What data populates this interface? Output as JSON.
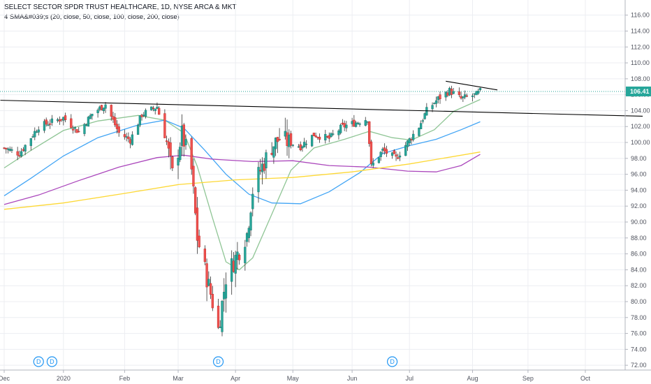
{
  "header": {
    "title": "SELECT SECTOR SPDR TRUST HEALTHCARE, 1D, NYSE ARCA & MKT",
    "indicator": "4 SMA&#039;s (20, close, 50, close, 100, close, 200, close)"
  },
  "chart_data": {
    "type": "candlestick",
    "y_ticks": [
      "116.00",
      "114.00",
      "112.00",
      "110.00",
      "108.00",
      "106.00",
      "104.00",
      "102.00",
      "100.00",
      "98.00",
      "96.00",
      "94.00",
      "92.00",
      "90.00",
      "88.00",
      "86.00",
      "84.00",
      "82.00",
      "80.00",
      "78.00",
      "76.00",
      "74.00",
      "72.00"
    ],
    "ylim": [
      71.4,
      117.2
    ],
    "x_ticks": [
      {
        "label": "Dec",
        "date": "2019-12-02"
      },
      {
        "label": "2020",
        "date": "2020-01-02"
      },
      {
        "label": "Feb",
        "date": "2020-02-03"
      },
      {
        "label": "Mar",
        "date": "2020-03-02"
      },
      {
        "label": "Apr",
        "date": "2020-04-01"
      },
      {
        "label": "May",
        "date": "2020-05-01"
      },
      {
        "label": "Jun",
        "date": "2020-06-01"
      },
      {
        "label": "Jul",
        "date": "2020-07-01"
      },
      {
        "label": "Aug",
        "date": "2020-08-03"
      },
      {
        "label": "Sep",
        "date": "2020-09-01"
      },
      {
        "label": "Oct",
        "date": "2020-10-01"
      }
    ],
    "last_price": {
      "label": "106.41",
      "value": 106.41,
      "color": "#26a69a"
    },
    "dividend_markers": [
      {
        "label": "D",
        "date": "2019-12-20"
      },
      {
        "label": "D",
        "date": "2019-12-27"
      },
      {
        "label": "D",
        "date": "2020-03-23"
      },
      {
        "label": "D",
        "date": "2020-06-22"
      }
    ],
    "anchors": [
      [
        "2019-12-02",
        99.3
      ],
      [
        "2019-12-10",
        98.6
      ],
      [
        "2019-12-20",
        102.0
      ],
      [
        "2020-01-02",
        103.1
      ],
      [
        "2020-01-10",
        101.3
      ],
      [
        "2020-01-17",
        103.6
      ],
      [
        "2020-01-24",
        104.8
      ],
      [
        "2020-01-31",
        101.2
      ],
      [
        "2020-02-06",
        100.3
      ],
      [
        "2020-02-12",
        103.5
      ],
      [
        "2020-02-20",
        104.5
      ],
      [
        "2020-02-25",
        100.0
      ],
      [
        "2020-02-28",
        96.0
      ],
      [
        "2020-03-04",
        101.0
      ],
      [
        "2020-03-09",
        96.5
      ],
      [
        "2020-03-12",
        88.0
      ],
      [
        "2020-03-16",
        84.0
      ],
      [
        "2020-03-19",
        81.0
      ],
      [
        "2020-03-23",
        76.5
      ],
      [
        "2020-03-27",
        83.0
      ],
      [
        "2020-04-02",
        86.0
      ],
      [
        "2020-04-07",
        88.5
      ],
      [
        "2020-04-10",
        94.0
      ],
      [
        "2020-04-14",
        96.5
      ],
      [
        "2020-04-20",
        99.5
      ],
      [
        "2020-04-24",
        100.5
      ],
      [
        "2020-04-29",
        100.0
      ],
      [
        "2020-05-05",
        99.5
      ],
      [
        "2020-05-12",
        101.0
      ],
      [
        "2020-05-20",
        100.5
      ],
      [
        "2020-05-27",
        102.0
      ],
      [
        "2020-06-03",
        102.5
      ],
      [
        "2020-06-09",
        103.0
      ],
      [
        "2020-06-11",
        97.0
      ],
      [
        "2020-06-17",
        99.0
      ],
      [
        "2020-06-24",
        98.0
      ],
      [
        "2020-06-30",
        100.0
      ],
      [
        "2020-07-06",
        102.0
      ],
      [
        "2020-07-10",
        104.0
      ],
      [
        "2020-07-16",
        105.5
      ],
      [
        "2020-07-22",
        106.5
      ],
      [
        "2020-07-28",
        105.5
      ],
      [
        "2020-08-05",
        106.0
      ],
      [
        "2020-08-07",
        106.41
      ]
    ],
    "series": [
      {
        "name": "SMA 20",
        "color": "#8fc595",
        "values": [
          [
            "2019-12-02",
            96.8
          ],
          [
            "2019-12-16",
            99.0
          ],
          [
            "2020-01-02",
            101.5
          ],
          [
            "2020-01-20",
            102.7
          ],
          [
            "2020-02-10",
            103.4
          ],
          [
            "2020-02-24",
            102.8
          ],
          [
            "2020-03-05",
            101.2
          ],
          [
            "2020-03-12",
            97.0
          ],
          [
            "2020-03-20",
            90.5
          ],
          [
            "2020-03-27",
            85.0
          ],
          [
            "2020-04-03",
            84.0
          ],
          [
            "2020-04-10",
            85.5
          ],
          [
            "2020-04-20",
            91.0
          ],
          [
            "2020-04-30",
            96.5
          ],
          [
            "2020-05-12",
            99.3
          ],
          [
            "2020-05-28",
            100.4
          ],
          [
            "2020-06-10",
            101.4
          ],
          [
            "2020-06-22",
            100.6
          ],
          [
            "2020-07-02",
            100.3
          ],
          [
            "2020-07-14",
            101.6
          ],
          [
            "2020-07-24",
            103.9
          ],
          [
            "2020-08-07",
            105.4
          ]
        ]
      },
      {
        "name": "SMA 50",
        "color": "#42a5f5",
        "values": [
          [
            "2019-12-02",
            93.3
          ],
          [
            "2019-12-16",
            95.5
          ],
          [
            "2020-01-02",
            98.3
          ],
          [
            "2020-01-20",
            100.6
          ],
          [
            "2020-02-10",
            102.2
          ],
          [
            "2020-02-24",
            102.8
          ],
          [
            "2020-03-05",
            101.8
          ],
          [
            "2020-03-16",
            99.0
          ],
          [
            "2020-03-27",
            96.0
          ],
          [
            "2020-04-08",
            93.5
          ],
          [
            "2020-04-20",
            92.4
          ],
          [
            "2020-05-05",
            92.3
          ],
          [
            "2020-05-20",
            93.8
          ],
          [
            "2020-06-05",
            96.2
          ],
          [
            "2020-06-17",
            98.6
          ],
          [
            "2020-07-01",
            99.6
          ],
          [
            "2020-07-15",
            100.4
          ],
          [
            "2020-07-28",
            101.6
          ],
          [
            "2020-08-07",
            102.6
          ]
        ]
      },
      {
        "name": "SMA 100",
        "color": "#ab47bc",
        "values": [
          [
            "2019-12-02",
            92.2
          ],
          [
            "2019-12-20",
            93.4
          ],
          [
            "2020-01-10",
            95.2
          ],
          [
            "2020-01-31",
            96.9
          ],
          [
            "2020-02-20",
            98.1
          ],
          [
            "2020-03-05",
            98.4
          ],
          [
            "2020-03-20",
            97.9
          ],
          [
            "2020-04-10",
            97.6
          ],
          [
            "2020-05-01",
            97.7
          ],
          [
            "2020-05-20",
            97.1
          ],
          [
            "2020-06-10",
            96.9
          ],
          [
            "2020-06-30",
            96.4
          ],
          [
            "2020-07-15",
            96.3
          ],
          [
            "2020-07-28",
            97.1
          ],
          [
            "2020-08-07",
            98.5
          ]
        ]
      },
      {
        "name": "SMA 200",
        "color": "#fdd835",
        "values": [
          [
            "2019-12-02",
            91.6
          ],
          [
            "2020-01-02",
            92.4
          ],
          [
            "2020-02-03",
            93.6
          ],
          [
            "2020-03-02",
            94.7
          ],
          [
            "2020-04-01",
            95.3
          ],
          [
            "2020-05-01",
            95.6
          ],
          [
            "2020-06-01",
            96.3
          ],
          [
            "2020-07-01",
            97.3
          ],
          [
            "2020-08-07",
            98.8
          ]
        ]
      }
    ],
    "trendlines": [
      {
        "color": "#000000",
        "from": [
          "2019-11-30",
          105.3
        ],
        "to": [
          "2020-10-31",
          103.3
        ]
      },
      {
        "color": "#000000",
        "from": [
          "2020-07-20",
          107.7
        ],
        "to": [
          "2020-08-16",
          106.6
        ]
      }
    ]
  }
}
